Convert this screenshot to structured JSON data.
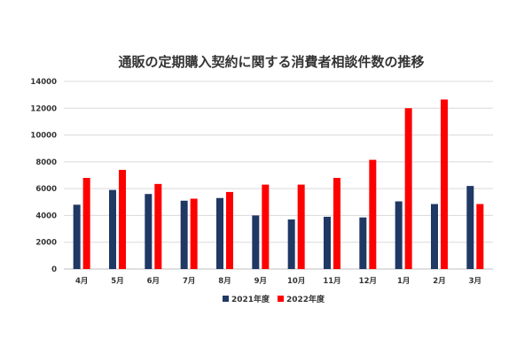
{
  "chart_data": {
    "type": "bar",
    "title": "通販の定期購入契約に関する消費者相談件数の推移",
    "categories": [
      "4月",
      "5月",
      "6月",
      "7月",
      "8月",
      "9月",
      "10月",
      "11月",
      "12月",
      "1月",
      "2月",
      "3月"
    ],
    "series": [
      {
        "name": "2021年度",
        "color": "#1f3864",
        "values": [
          4800,
          5900,
          5600,
          5100,
          5300,
          4000,
          3700,
          3900,
          3850,
          5050,
          4850,
          6200
        ]
      },
      {
        "name": "2022年度",
        "color": "#ff0000",
        "values": [
          6800,
          7400,
          6350,
          5250,
          5750,
          6300,
          6300,
          6800,
          8150,
          12000,
          12650,
          4850
        ]
      }
    ],
    "y_ticks": [
      "0",
      "2000",
      "4000",
      "6000",
      "8000",
      "10000",
      "12000",
      "14000"
    ],
    "ylim": [
      0,
      14000
    ],
    "grid": true,
    "legend_position": "bottom-center"
  }
}
